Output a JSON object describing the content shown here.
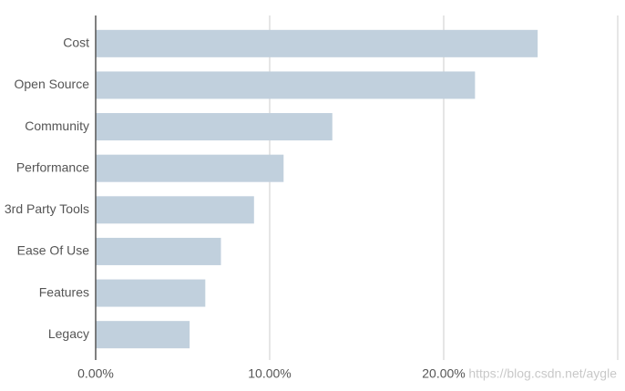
{
  "chart_data": {
    "type": "bar",
    "orientation": "horizontal",
    "categories": [
      "Cost",
      "Open Source",
      "Community",
      "Performance",
      "3rd Party Tools",
      "Ease Of Use",
      "Features",
      "Legacy"
    ],
    "values": [
      25.4,
      21.8,
      13.6,
      10.8,
      9.1,
      7.2,
      6.3,
      5.4
    ],
    "color": "#c1d0dd",
    "xlim": [
      0,
      30
    ],
    "xticks": [
      {
        "value": 0,
        "label": "0.00%"
      },
      {
        "value": 10,
        "label": "10.00%"
      },
      {
        "value": 20,
        "label": "20.00%"
      }
    ],
    "grid": true,
    "watermark": "https://blog.csdn.net/aygle"
  }
}
